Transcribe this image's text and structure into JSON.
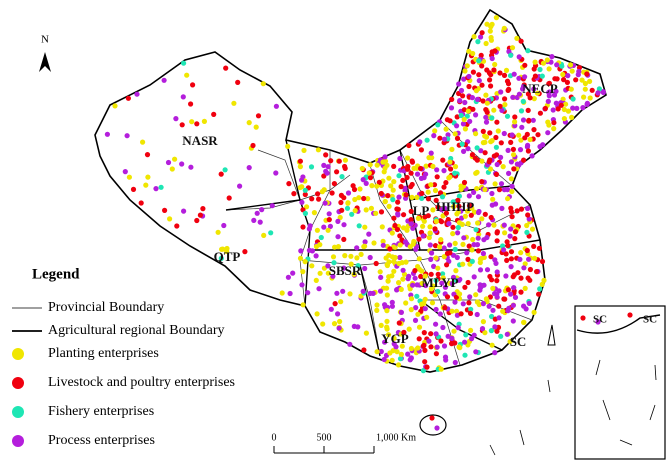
{
  "north_arrow": "N",
  "regions": [
    "NASR",
    "NECP",
    "HHHP",
    "LP",
    "QTP",
    "SBSR",
    "MLYP",
    "YGP",
    "SC",
    "SC",
    "SC"
  ],
  "legend": {
    "title": "Legend",
    "lines": [
      "Provincial Boundary",
      "Agricultural regional Boundary"
    ],
    "items": [
      {
        "name": "Planting enterprises",
        "color": "#f0e600"
      },
      {
        "name": "Livestock and poultry enterprises",
        "color": "#f0000f"
      },
      {
        "name": "Fishery enterprises",
        "color": "#1ee6b4"
      },
      {
        "name": "Process enterprises",
        "color": "#b41edc"
      }
    ]
  },
  "scale_bar": [
    "0",
    "500",
    "1,000 Km"
  ]
}
